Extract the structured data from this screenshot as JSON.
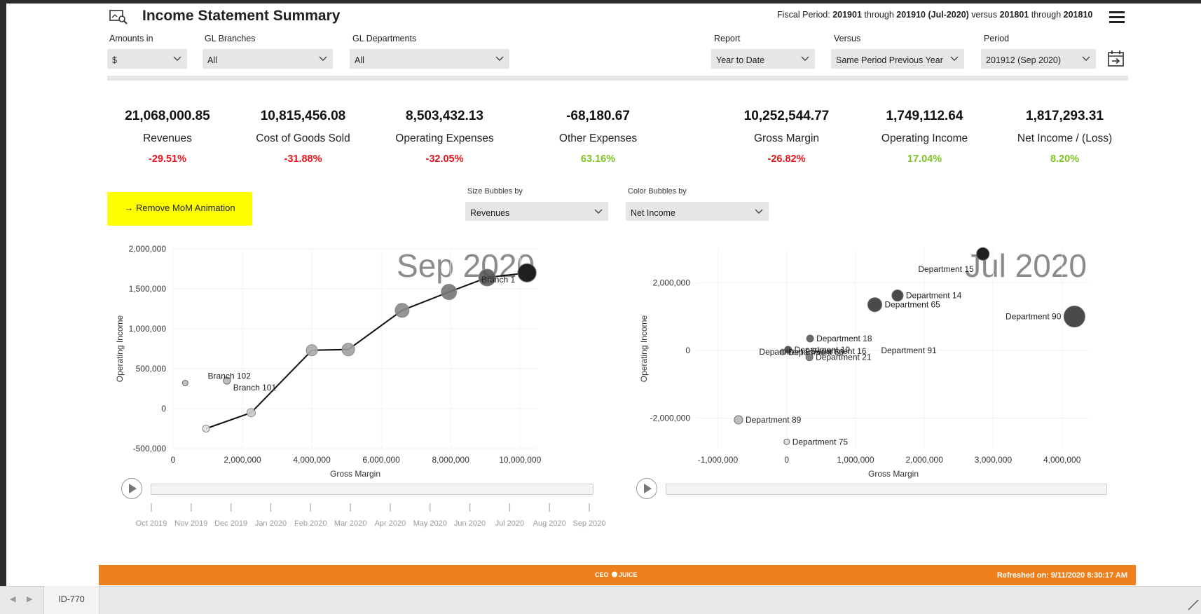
{
  "header": {
    "title": "Income Statement Summary",
    "fiscal": {
      "prefix": "Fiscal Period: ",
      "from": "201901",
      "through1": " through ",
      "to": "201910 (Jul-2020)",
      "versus": " versus ",
      "cmp_from": "201801",
      "through2": " through ",
      "cmp_to": "201810"
    }
  },
  "filters": {
    "amounts_in": {
      "label": "Amounts in",
      "value": "$"
    },
    "gl_branches": {
      "label": "GL Branches",
      "value": "All"
    },
    "gl_departments": {
      "label": "GL Departments",
      "value": "All"
    },
    "report": {
      "label": "Report",
      "value": "Year to Date"
    },
    "versus": {
      "label": "Versus",
      "value": "Same Period Previous Year"
    },
    "period": {
      "label": "Period",
      "value": "201912 (Sep 2020)"
    }
  },
  "kpis": [
    {
      "value": "21,068,000.85",
      "label": "Revenues",
      "change": "-29.51%",
      "trend": "negative"
    },
    {
      "value": "10,815,456.08",
      "label": "Cost of Goods Sold",
      "change": "-31.88%",
      "trend": "negative"
    },
    {
      "value": "8,503,432.13",
      "label": "Operating Expenses",
      "change": "-32.05%",
      "trend": "negative"
    },
    {
      "value": "-68,180.67",
      "label": "Other Expenses",
      "change": "63.16%",
      "trend": "positive"
    },
    {
      "value": "10,252,544.77",
      "label": "Gross Margin",
      "change": "-26.82%",
      "trend": "negative"
    },
    {
      "value": "1,749,112.64",
      "label": "Operating Income",
      "change": "17.04%",
      "trend": "positive"
    },
    {
      "value": "1,817,293.31",
      "label": "Net Income / (Loss)",
      "change": "8.20%",
      "trend": "positive"
    }
  ],
  "colors": {
    "negative": "#e8141b",
    "positive": "#7dc424",
    "footer": "#ef7f1a",
    "highlight": "#ffff00"
  },
  "animation_button": "→ Remove MoM Animation",
  "bubble_controls": {
    "size": {
      "label": "Size Bubbles by",
      "value": "Revenues"
    },
    "color": {
      "label": "Color Bubbles by",
      "value": "Net Income"
    }
  },
  "timeline": {
    "labels": [
      "Oct 2019",
      "Nov 2019",
      "Dec 2019",
      "Jan 2020",
      "Feb 2020",
      "Mar 2020",
      "Apr 2020",
      "May 2020",
      "Jun 2020",
      "Jul 2020",
      "Aug 2020",
      "Sep 2020"
    ]
  },
  "chart_data": [
    {
      "type": "scatter",
      "title": "",
      "watermark": "Sep 2020",
      "xlabel": "Gross Margin",
      "ylabel": "Operating Income",
      "xlim": [
        0,
        10500000
      ],
      "ylim": [
        -500000,
        2000000
      ],
      "xticks": [
        "0",
        "2,000,000",
        "4,000,000",
        "6,000,000",
        "8,000,000",
        "10,000,000"
      ],
      "xtick_values": [
        0,
        2000000,
        4000000,
        6000000,
        8000000,
        10000000
      ],
      "yticks": [
        "2,000,000",
        "1,500,000",
        "1,000,000",
        "500,000",
        "0",
        "-500,000"
      ],
      "ytick_values": [
        2000000,
        1500000,
        1000000,
        500000,
        0,
        -500000
      ],
      "points": [
        {
          "x": 350000,
          "y": 320000,
          "size": 4,
          "shade": 0.2,
          "label": ""
        },
        {
          "x": 1550000,
          "y": 350000,
          "size": 5,
          "shade": 0.2,
          "label": "Branch 101"
        },
        {
          "x": 10200000,
          "y": 1700000,
          "size": 13,
          "shade": 0.95,
          "label": "Branch 1"
        }
      ],
      "trail": [
        {
          "x": 950000,
          "y": -250000,
          "size": 5,
          "shade": 0.05
        },
        {
          "x": 2250000,
          "y": -50000,
          "size": 6,
          "shade": 0.15
        },
        {
          "x": 4000000,
          "y": 730000,
          "size": 8,
          "shade": 0.3
        },
        {
          "x": 5050000,
          "y": 740000,
          "size": 9,
          "shade": 0.35
        },
        {
          "x": 6600000,
          "y": 1230000,
          "size": 10,
          "shade": 0.45
        },
        {
          "x": 7950000,
          "y": 1460000,
          "size": 11,
          "shade": 0.55
        },
        {
          "x": 9050000,
          "y": 1640000,
          "size": 12,
          "shade": 0.7
        },
        {
          "x": 10200000,
          "y": 1700000,
          "size": 13,
          "shade": 0.95
        }
      ],
      "extra_labels": [
        {
          "text": "Branch 102",
          "x": 1000000,
          "y": 410000
        }
      ]
    },
    {
      "type": "scatter",
      "title": "",
      "watermark": "Jul 2020",
      "xlabel": "Gross Margin",
      "ylabel": "Operating Income",
      "xlim": [
        -1300000,
        4400000
      ],
      "ylim": [
        -2900000,
        3000000
      ],
      "xticks": [
        "-1,000,000",
        "0",
        "1,000,000",
        "2,000,000",
        "3,000,000",
        "4,000,000"
      ],
      "xtick_values": [
        -1000000,
        0,
        1000000,
        2000000,
        3000000,
        4000000
      ],
      "yticks": [
        "2,000,000",
        "0",
        "-2,000,000"
      ],
      "ytick_values": [
        2000000,
        0,
        -2000000
      ],
      "points": [
        {
          "x": 2850000,
          "y": 2850000,
          "size": 9,
          "shade": 0.95,
          "label": "Department 15"
        },
        {
          "x": 1280000,
          "y": 1350000,
          "size": 10,
          "shade": 0.75,
          "label": "Department 65"
        },
        {
          "x": 1610000,
          "y": 1620000,
          "size": 8,
          "shade": 0.75,
          "label": "Department 14"
        },
        {
          "x": 4180000,
          "y": 1000000,
          "size": 15,
          "shade": 0.75,
          "label": "Department 90"
        },
        {
          "x": 340000,
          "y": 350000,
          "size": 5,
          "shade": 0.6,
          "label": "Department 18"
        },
        {
          "x": 20000,
          "y": 20000,
          "size": 5,
          "shade": 0.7,
          "label": "Department 19"
        },
        {
          "x": -60000,
          "y": -50000,
          "size": 4,
          "shade": 0.3,
          "label": "Department 66"
        },
        {
          "x": 330000,
          "y": -200000,
          "size": 5,
          "shade": 0.5,
          "label": "Department 21"
        },
        {
          "x": 1330000,
          "y": 0,
          "size": 0,
          "shade": 0.5,
          "label": "Department 91"
        },
        {
          "x": -700000,
          "y": -2050000,
          "size": 6,
          "shade": 0.2,
          "label": "Department 89"
        },
        {
          "x": 0,
          "y": -2700000,
          "size": 4,
          "shade": 0.05,
          "label": "Department 75"
        }
      ],
      "extra_labels": [
        {
          "text": "Department 16",
          "x": 350000,
          "y": -20000
        },
        {
          "text": "Department 8",
          "x": -400000,
          "y": -40000
        }
      ]
    }
  ],
  "footer": {
    "logo": "CEO JUICE",
    "refreshed": "Refreshed on: 9/11/2020 8:30:17 AM"
  },
  "bottom_tab": "ID-770"
}
